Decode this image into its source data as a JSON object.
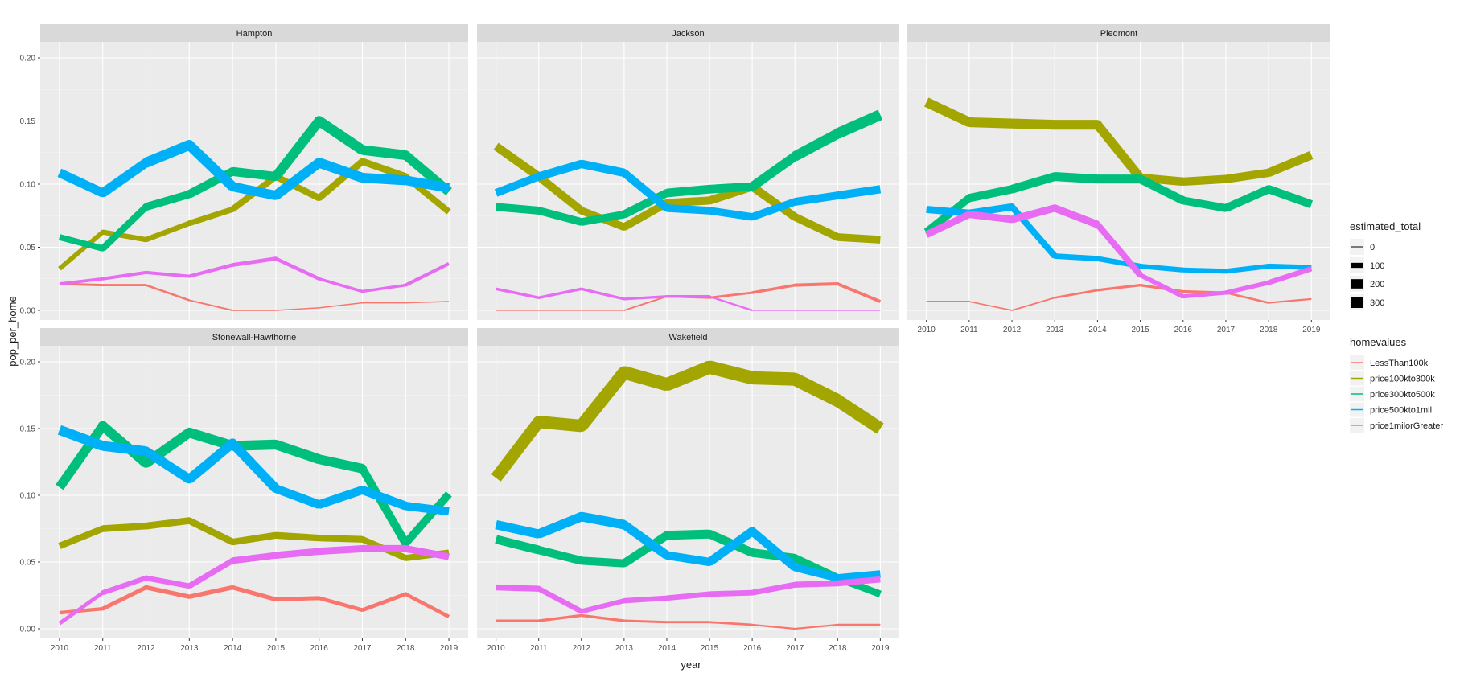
{
  "chart_data": {
    "type": "line",
    "facet_by": "neighborhood",
    "xlabel": "year",
    "ylabel": "pop_per_home",
    "ylim": [
      0,
      0.2
    ],
    "x": [
      2010,
      2011,
      2012,
      2013,
      2014,
      2015,
      2016,
      2017,
      2018,
      2019
    ],
    "x_tick_labels": [
      "2010",
      "2011",
      "2012",
      "2013",
      "2014",
      "2015",
      "2016",
      "2017",
      "2018",
      "2019"
    ],
    "y_ticks": [
      0,
      0.05,
      0.1,
      0.15,
      0.2
    ],
    "y_tick_labels": [
      "0.00",
      "0.05",
      "0.10",
      "0.15",
      "0.20"
    ],
    "colors": {
      "LessThan100k": "#F8766D",
      "price100kto300k": "#A3A500",
      "price300kto500k": "#00BF7D",
      "price500kto1mil": "#00B0F6",
      "price1milorGreater": "#E76BF3"
    },
    "legend_size": {
      "title": "estimated_total",
      "labels": [
        "0",
        "100",
        "200",
        "300"
      ],
      "values": [
        0,
        100,
        200,
        300
      ]
    },
    "legend_color": {
      "title": "homevalues",
      "labels": [
        "LessThan100k",
        "price100kto300k",
        "price300kto500k",
        "price500kto1mil",
        "price1milorGreater"
      ]
    },
    "facets": [
      {
        "name": "Hampton",
        "series": [
          {
            "name": "LessThan100k",
            "values": [
              0.021,
              0.02,
              0.02,
              0.008,
              0.0,
              0.0,
              0.002,
              0.006,
              0.006,
              0.007
            ],
            "sizes": [
              40,
              35,
              35,
              25,
              10,
              10,
              10,
              10,
              10,
              10
            ]
          },
          {
            "name": "price100kto300k",
            "values": [
              0.033,
              0.062,
              0.056,
              0.069,
              0.08,
              0.106,
              0.089,
              0.118,
              0.106,
              0.078
            ],
            "sizes": [
              80,
              100,
              100,
              110,
              120,
              140,
              130,
              150,
              140,
              120
            ]
          },
          {
            "name": "price300kto500k",
            "values": [
              0.058,
              0.049,
              0.082,
              0.092,
              0.11,
              0.106,
              0.15,
              0.127,
              0.123,
              0.094
            ],
            "sizes": [
              130,
              120,
              160,
              170,
              190,
              190,
              230,
              210,
              210,
              190
            ]
          },
          {
            "name": "price500kto1mil",
            "values": [
              0.109,
              0.093,
              0.117,
              0.131,
              0.098,
              0.091,
              0.117,
              0.105,
              0.103,
              0.097
            ],
            "sizes": [
              200,
              190,
              210,
              230,
              200,
              200,
              220,
              210,
              210,
              200
            ]
          },
          {
            "name": "price1milorGreater",
            "values": [
              0.021,
              0.025,
              0.03,
              0.027,
              0.036,
              0.041,
              0.025,
              0.015,
              0.02,
              0.037
            ],
            "sizes": [
              50,
              55,
              60,
              55,
              70,
              75,
              55,
              45,
              50,
              70
            ]
          }
        ]
      },
      {
        "name": "Jackson",
        "series": [
          {
            "name": "LessThan100k",
            "values": [
              0.0,
              0.0,
              0.0,
              0.0,
              0.011,
              0.01,
              0.014,
              0.02,
              0.021,
              0.007
            ],
            "sizes": [
              5,
              5,
              5,
              5,
              30,
              30,
              40,
              55,
              60,
              50
            ]
          },
          {
            "name": "price100kto300k",
            "values": [
              0.13,
              0.106,
              0.079,
              0.066,
              0.085,
              0.087,
              0.098,
              0.074,
              0.058,
              0.056
            ],
            "sizes": [
              180,
              175,
              165,
              155,
              170,
              170,
              180,
              170,
              160,
              160
            ]
          },
          {
            "name": "price300kto500k",
            "values": [
              0.082,
              0.079,
              0.07,
              0.076,
              0.093,
              0.096,
              0.098,
              0.122,
              0.14,
              0.155
            ],
            "sizes": [
              170,
              165,
              160,
              165,
              180,
              185,
              185,
              210,
              230,
              240
            ]
          },
          {
            "name": "price500kto1mil",
            "values": [
              0.093,
              0.106,
              0.116,
              0.109,
              0.081,
              0.079,
              0.074,
              0.086,
              0.091,
              0.096
            ],
            "sizes": [
              160,
              170,
              180,
              175,
              160,
              160,
              155,
              165,
              170,
              175
            ]
          },
          {
            "name": "price1milorGreater",
            "values": [
              0.017,
              0.01,
              0.017,
              0.009,
              0.011,
              0.011,
              0.0,
              0.0,
              0.0,
              0.0
            ],
            "sizes": [
              50,
              45,
              50,
              40,
              45,
              45,
              5,
              5,
              5,
              5
            ]
          }
        ]
      },
      {
        "name": "Piedmont",
        "series": [
          {
            "name": "LessThan100k",
            "values": [
              0.007,
              0.007,
              0.0,
              0.01,
              0.016,
              0.02,
              0.015,
              0.014,
              0.006,
              0.009
            ],
            "sizes": [
              20,
              20,
              5,
              25,
              40,
              45,
              40,
              40,
              20,
              25
            ]
          },
          {
            "name": "price100kto300k",
            "values": [
              0.165,
              0.149,
              0.148,
              0.147,
              0.147,
              0.105,
              0.102,
              0.104,
              0.109,
              0.123
            ],
            "sizes": [
              210,
              210,
              210,
              210,
              210,
              180,
              175,
              175,
              180,
              190
            ]
          },
          {
            "name": "price300kto500k",
            "values": [
              0.062,
              0.089,
              0.096,
              0.106,
              0.104,
              0.104,
              0.087,
              0.081,
              0.096,
              0.084
            ],
            "sizes": [
              150,
              170,
              180,
              190,
              190,
              190,
              170,
              165,
              180,
              170
            ]
          },
          {
            "name": "price500kto1mil",
            "values": [
              0.08,
              0.077,
              0.082,
              0.043,
              0.041,
              0.035,
              0.032,
              0.031,
              0.035,
              0.034
            ],
            "sizes": [
              150,
              145,
              150,
              110,
              105,
              100,
              95,
              95,
              100,
              100
            ]
          },
          {
            "name": "price1milorGreater",
            "values": [
              0.06,
              0.076,
              0.072,
              0.081,
              0.068,
              0.028,
              0.011,
              0.014,
              0.022,
              0.033
            ],
            "sizes": [
              140,
              150,
              150,
              160,
              150,
              110,
              70,
              80,
              95,
              110
            ]
          }
        ]
      },
      {
        "name": "Stonewall-Hawthorne",
        "series": [
          {
            "name": "LessThan100k",
            "values": [
              0.012,
              0.015,
              0.031,
              0.024,
              0.031,
              0.022,
              0.023,
              0.014,
              0.026,
              0.009
            ],
            "sizes": [
              60,
              65,
              90,
              80,
              90,
              75,
              75,
              65,
              80,
              55
            ]
          },
          {
            "name": "price100kto300k",
            "values": [
              0.062,
              0.075,
              0.077,
              0.081,
              0.065,
              0.07,
              0.068,
              0.067,
              0.053,
              0.057
            ],
            "sizes": [
              130,
              140,
              140,
              145,
              135,
              140,
              135,
              135,
              125,
              130
            ]
          },
          {
            "name": "price300kto500k",
            "values": [
              0.106,
              0.152,
              0.124,
              0.147,
              0.137,
              0.138,
              0.127,
              0.12,
              0.064,
              0.101
            ],
            "sizes": [
              180,
              220,
              200,
              220,
              210,
              215,
              205,
              200,
              150,
              180
            ]
          },
          {
            "name": "price500kto1mil",
            "values": [
              0.149,
              0.137,
              0.133,
              0.112,
              0.139,
              0.105,
              0.093,
              0.104,
              0.092,
              0.088
            ],
            "sizes": [
              220,
              210,
              210,
              190,
              215,
              190,
              180,
              190,
              180,
              175
            ]
          },
          {
            "name": "price1milorGreater",
            "values": [
              0.004,
              0.027,
              0.038,
              0.032,
              0.051,
              0.055,
              0.058,
              0.06,
              0.06,
              0.054
            ],
            "sizes": [
              50,
              90,
              110,
              100,
              130,
              140,
              145,
              150,
              150,
              140
            ]
          }
        ]
      },
      {
        "name": "Wakefield",
        "series": [
          {
            "name": "LessThan100k",
            "values": [
              0.006,
              0.006,
              0.01,
              0.006,
              0.005,
              0.005,
              0.003,
              0.0,
              0.003,
              0.003
            ],
            "sizes": [
              40,
              40,
              50,
              40,
              35,
              35,
              30,
              15,
              30,
              30
            ]
          },
          {
            "name": "price100kto300k",
            "values": [
              0.113,
              0.155,
              0.152,
              0.192,
              0.183,
              0.196,
              0.188,
              0.187,
              0.171,
              0.15
            ],
            "sizes": [
              250,
              270,
              270,
              290,
              285,
              295,
              290,
              290,
              280,
              270
            ]
          },
          {
            "name": "price300kto500k",
            "values": [
              0.067,
              0.059,
              0.051,
              0.049,
              0.07,
              0.071,
              0.057,
              0.053,
              0.038,
              0.026
            ],
            "sizes": [
              190,
              180,
              170,
              170,
              190,
              190,
              180,
              175,
              155,
              140
            ]
          },
          {
            "name": "price500kto1mil",
            "values": [
              0.078,
              0.071,
              0.084,
              0.078,
              0.055,
              0.05,
              0.073,
              0.046,
              0.038,
              0.041
            ],
            "sizes": [
              200,
              190,
              210,
              200,
              180,
              175,
              195,
              170,
              160,
              160
            ]
          },
          {
            "name": "price1milorGreater",
            "values": [
              0.031,
              0.03,
              0.013,
              0.021,
              0.023,
              0.026,
              0.027,
              0.033,
              0.034,
              0.037
            ],
            "sizes": [
              120,
              120,
              90,
              100,
              105,
              110,
              110,
              120,
              120,
              125
            ]
          }
        ]
      }
    ]
  }
}
